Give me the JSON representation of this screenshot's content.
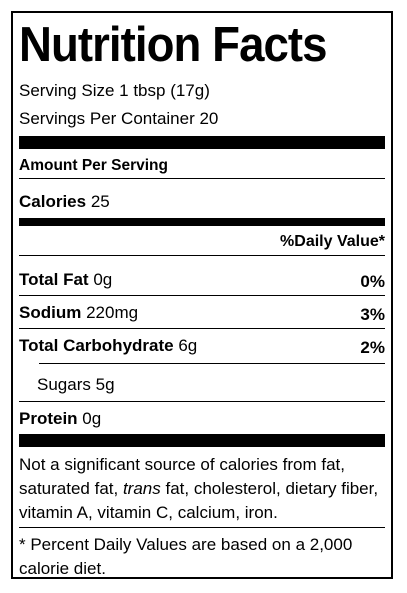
{
  "title": "Nutrition Facts",
  "serving_size": "Serving Size 1 tbsp (17g)",
  "servings_per_container": "Servings Per Container 20",
  "amount_per_serving": "Amount Per Serving",
  "calories": {
    "label": "Calories",
    "value": "25"
  },
  "daily_value_header": "%Daily Value*",
  "nutrients": {
    "total_fat": {
      "label": "Total Fat",
      "amount": "0g",
      "dv": "0%"
    },
    "sodium": {
      "label": "Sodium",
      "amount": "220mg",
      "dv": "3%"
    },
    "total_carbohydrate": {
      "label": "Total Carbohydrate",
      "amount": "6g",
      "dv": "2%"
    },
    "sugars": {
      "label": "Sugars",
      "amount": "5g"
    },
    "protein": {
      "label": "Protein",
      "amount": "0g"
    }
  },
  "footnote_not_significant": {
    "before": "Not a significant source of calories from fat, saturated fat, ",
    "italic": "trans",
    "after": " fat, cholesterol, dietary fiber, vitamin A, vitamin C, calcium, iron."
  },
  "footnote_daily_values": "* Percent Daily Values are based on a 2,000 calorie diet."
}
